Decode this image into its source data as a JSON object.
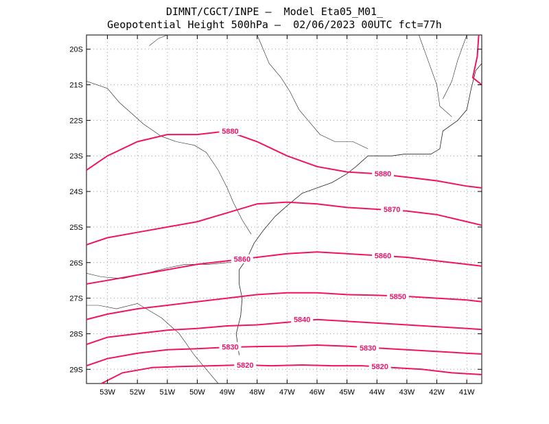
{
  "title_line1": "DIMNT/CGCT/INPE –  Model Eta05_M01_",
  "title_line2": "Geopotential Height 500hPa –  02/06/2023 00UTC fct=77h",
  "colors": {
    "contour": "#f0145a",
    "label": "#e8146a",
    "coast": "#222222",
    "grid": "#999999"
  },
  "lat_ticks": [
    "20S",
    "21S",
    "22S",
    "23S",
    "24S",
    "25S",
    "26S",
    "27S",
    "28S",
    "29S"
  ],
  "lon_ticks": [
    "53W",
    "52W",
    "51W",
    "50W",
    "49W",
    "48W",
    "47W",
    "46W",
    "45W",
    "44W",
    "43W",
    "42W",
    "41W"
  ],
  "chart_data": {
    "type": "contour-map",
    "variable": "Geopotential Height 500hPa",
    "lon_range": [
      -53.7,
      -40.5
    ],
    "lat_range": [
      -29.4,
      -19.6
    ],
    "contours": [
      {
        "level": "5880",
        "points": [
          [
            -53.7,
            -23.4
          ],
          [
            -53.0,
            -23.0
          ],
          [
            -52.0,
            -22.6
          ],
          [
            -51.0,
            -22.4
          ],
          [
            -50.0,
            -22.4
          ],
          [
            -49.0,
            -22.3
          ],
          [
            -48.0,
            -22.6
          ],
          [
            -47.0,
            -23.0
          ],
          [
            -46.0,
            -23.3
          ],
          [
            -45.0,
            -23.45
          ],
          [
            -44.0,
            -23.5
          ],
          [
            -43.0,
            -23.6
          ],
          [
            -42.0,
            -23.7
          ],
          [
            -41.0,
            -23.85
          ],
          [
            -40.5,
            -23.9
          ]
        ],
        "labels": [
          [
            -48.9,
            -22.3
          ],
          [
            -43.8,
            -23.5
          ]
        ]
      },
      {
        "level": "5870",
        "points": [
          [
            -53.7,
            -25.5
          ],
          [
            -53.0,
            -25.3
          ],
          [
            -52.0,
            -25.15
          ],
          [
            -51.0,
            -25.0
          ],
          [
            -50.0,
            -24.85
          ],
          [
            -49.0,
            -24.6
          ],
          [
            -48.0,
            -24.35
          ],
          [
            -47.0,
            -24.3
          ],
          [
            -46.0,
            -24.35
          ],
          [
            -45.0,
            -24.45
          ],
          [
            -44.0,
            -24.5
          ],
          [
            -43.0,
            -24.55
          ],
          [
            -42.0,
            -24.65
          ],
          [
            -41.0,
            -24.85
          ],
          [
            -40.5,
            -24.95
          ]
        ],
        "labels": [
          [
            -43.5,
            -24.5
          ]
        ]
      },
      {
        "level": "5860",
        "points": [
          [
            -53.7,
            -26.6
          ],
          [
            -53.0,
            -26.5
          ],
          [
            -52.0,
            -26.35
          ],
          [
            -51.0,
            -26.2
          ],
          [
            -50.0,
            -26.05
          ],
          [
            -49.0,
            -25.95
          ],
          [
            -48.0,
            -25.85
          ],
          [
            -47.0,
            -25.75
          ],
          [
            -46.0,
            -25.7
          ],
          [
            -45.0,
            -25.75
          ],
          [
            -44.0,
            -25.8
          ],
          [
            -43.0,
            -25.85
          ],
          [
            -42.0,
            -25.95
          ],
          [
            -41.0,
            -26.05
          ],
          [
            -40.5,
            -26.1
          ]
        ],
        "labels": [
          [
            -48.5,
            -25.9
          ],
          [
            -43.8,
            -25.8
          ]
        ]
      },
      {
        "level": "5850",
        "points": [
          [
            -53.7,
            -27.6
          ],
          [
            -53.0,
            -27.45
          ],
          [
            -52.0,
            -27.3
          ],
          [
            -51.0,
            -27.2
          ],
          [
            -50.0,
            -27.1
          ],
          [
            -49.0,
            -27.0
          ],
          [
            -48.0,
            -26.9
          ],
          [
            -47.0,
            -26.85
          ],
          [
            -46.0,
            -26.85
          ],
          [
            -45.0,
            -26.9
          ],
          [
            -44.0,
            -26.92
          ],
          [
            -43.0,
            -26.95
          ],
          [
            -42.0,
            -27.0
          ],
          [
            -41.0,
            -27.05
          ],
          [
            -40.5,
            -27.1
          ]
        ],
        "labels": [
          [
            -43.3,
            -26.95
          ]
        ]
      },
      {
        "level": "5840",
        "points": [
          [
            -53.7,
            -28.3
          ],
          [
            -53.0,
            -28.1
          ],
          [
            -52.0,
            -28.0
          ],
          [
            -51.0,
            -27.9
          ],
          [
            -50.0,
            -27.85
          ],
          [
            -49.0,
            -27.78
          ],
          [
            -48.0,
            -27.75
          ],
          [
            -47.0,
            -27.68
          ],
          [
            -46.0,
            -27.6
          ],
          [
            -45.0,
            -27.65
          ],
          [
            -44.0,
            -27.7
          ],
          [
            -43.0,
            -27.75
          ],
          [
            -42.0,
            -27.8
          ],
          [
            -41.0,
            -27.85
          ],
          [
            -40.5,
            -27.88
          ]
        ],
        "labels": [
          [
            -46.5,
            -27.6
          ]
        ]
      },
      {
        "level": "5830",
        "points": [
          [
            -53.7,
            -28.9
          ],
          [
            -53.0,
            -28.7
          ],
          [
            -52.0,
            -28.55
          ],
          [
            -51.0,
            -28.45
          ],
          [
            -50.0,
            -28.42
          ],
          [
            -49.0,
            -28.38
          ],
          [
            -48.0,
            -28.36
          ],
          [
            -47.0,
            -28.35
          ],
          [
            -46.0,
            -28.32
          ],
          [
            -45.0,
            -28.35
          ],
          [
            -44.0,
            -28.4
          ],
          [
            -43.0,
            -28.45
          ],
          [
            -42.0,
            -28.5
          ],
          [
            -41.0,
            -28.55
          ],
          [
            -40.5,
            -28.57
          ]
        ],
        "labels": [
          [
            -48.9,
            -28.37
          ],
          [
            -44.3,
            -28.4
          ]
        ]
      },
      {
        "level": "5820",
        "points": [
          [
            -53.2,
            -29.4
          ],
          [
            -52.5,
            -29.1
          ],
          [
            -51.5,
            -28.95
          ],
          [
            -50.5,
            -28.92
          ],
          [
            -49.5,
            -28.9
          ],
          [
            -48.5,
            -28.88
          ],
          [
            -47.5,
            -28.9
          ],
          [
            -46.5,
            -28.88
          ],
          [
            -45.5,
            -28.9
          ],
          [
            -44.5,
            -28.9
          ],
          [
            -43.5,
            -28.95
          ],
          [
            -42.5,
            -29.0
          ],
          [
            -41.5,
            -29.1
          ],
          [
            -40.5,
            -29.15
          ]
        ],
        "labels": [
          [
            -48.4,
            -28.88
          ],
          [
            -43.9,
            -28.92
          ]
        ]
      }
    ],
    "coastline": [
      [
        [
          -48.6,
          -28.6
        ],
        [
          -48.7,
          -28.0
        ],
        [
          -48.55,
          -27.5
        ],
        [
          -48.5,
          -27.0
        ],
        [
          -48.6,
          -26.6
        ],
        [
          -48.6,
          -26.2
        ],
        [
          -48.35,
          -25.9
        ],
        [
          -48.1,
          -25.45
        ],
        [
          -47.8,
          -25.1
        ],
        [
          -47.4,
          -24.7
        ],
        [
          -47.0,
          -24.4
        ],
        [
          -46.5,
          -24.05
        ],
        [
          -46.0,
          -23.9
        ],
        [
          -45.5,
          -23.75
        ],
        [
          -45.0,
          -23.5
        ],
        [
          -44.7,
          -23.3
        ],
        [
          -44.3,
          -23.0
        ],
        [
          -43.9,
          -23.0
        ],
        [
          -43.5,
          -23.0
        ],
        [
          -43.1,
          -22.95
        ],
        [
          -42.7,
          -22.95
        ],
        [
          -42.2,
          -22.95
        ],
        [
          -41.9,
          -22.8
        ],
        [
          -41.8,
          -22.3
        ],
        [
          -41.3,
          -22.0
        ],
        [
          -41.0,
          -21.7
        ],
        [
          -40.85,
          -21.1
        ],
        [
          -40.7,
          -20.6
        ],
        [
          -40.5,
          -20.4
        ]
      ]
    ],
    "borders": [
      [
        [
          -53.7,
          -20.9
        ],
        [
          -53.0,
          -21.1
        ],
        [
          -52.6,
          -21.5
        ],
        [
          -52.2,
          -21.8
        ],
        [
          -51.8,
          -22.1
        ],
        [
          -51.2,
          -22.45
        ],
        [
          -50.7,
          -22.6
        ],
        [
          -50.1,
          -22.7
        ],
        [
          -49.7,
          -22.9
        ],
        [
          -49.3,
          -23.4
        ],
        [
          -49.0,
          -23.9
        ],
        [
          -48.8,
          -24.3
        ],
        [
          -48.5,
          -24.8
        ],
        [
          -48.2,
          -25.2
        ]
      ],
      [
        [
          -53.7,
          -26.3
        ],
        [
          -53.2,
          -26.4
        ],
        [
          -52.5,
          -26.45
        ],
        [
          -51.7,
          -26.3
        ],
        [
          -51.0,
          -26.15
        ],
        [
          -50.4,
          -26.05
        ],
        [
          -49.6,
          -26.05
        ],
        [
          -49.0,
          -26.0
        ],
        [
          -48.6,
          -26.0
        ]
      ],
      [
        [
          -53.7,
          -27.2
        ],
        [
          -53.3,
          -27.2
        ],
        [
          -52.7,
          -27.3
        ],
        [
          -52.0,
          -27.15
        ],
        [
          -51.2,
          -27.55
        ],
        [
          -50.6,
          -28.0
        ],
        [
          -50.1,
          -28.6
        ],
        [
          -49.6,
          -29.1
        ],
        [
          -49.3,
          -29.4
        ]
      ],
      [
        [
          -48.0,
          -19.6
        ],
        [
          -47.8,
          -20.0
        ],
        [
          -47.6,
          -20.4
        ],
        [
          -47.2,
          -20.8
        ],
        [
          -46.9,
          -21.2
        ],
        [
          -46.6,
          -21.7
        ],
        [
          -46.3,
          -22.0
        ],
        [
          -45.9,
          -22.4
        ],
        [
          -45.4,
          -22.6
        ],
        [
          -44.8,
          -22.6
        ],
        [
          -44.3,
          -22.8
        ]
      ],
      [
        [
          -51.6,
          -19.9
        ],
        [
          -51.3,
          -19.7
        ],
        [
          -51.0,
          -19.6
        ]
      ],
      [
        [
          -42.6,
          -19.6
        ],
        [
          -42.3,
          -20.3
        ],
        [
          -42.0,
          -21.0
        ],
        [
          -41.9,
          -21.6
        ],
        [
          -41.5,
          -21.9
        ]
      ],
      [
        [
          -41.0,
          -19.6
        ],
        [
          -41.3,
          -20.3
        ],
        [
          -41.5,
          -20.9
        ],
        [
          -41.8,
          -21.4
        ]
      ]
    ],
    "dateline_like": [
      [
        -40.6,
        -19.6
      ],
      [
        -40.65,
        -20.2
      ],
      [
        -40.8,
        -20.8
      ],
      [
        -40.5,
        -21.0
      ]
    ]
  }
}
